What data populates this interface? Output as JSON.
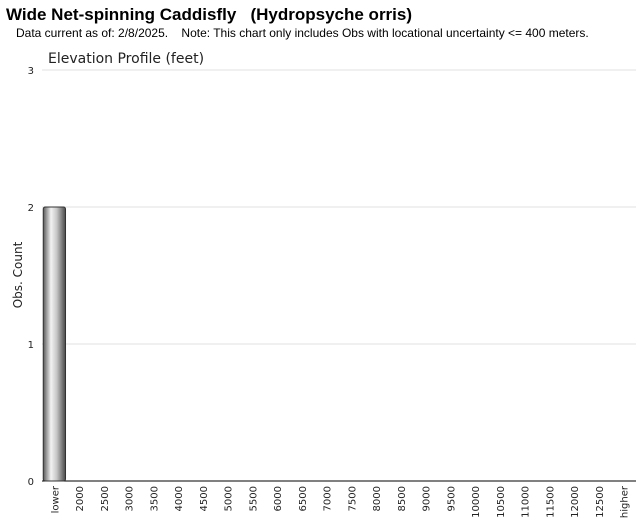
{
  "header": {
    "title": "Wide Net-spinning Caddisfly   (Hydropsyche orris)",
    "subtitle": "Data current as of: 2/8/2025.    Note: This chart only includes Obs with locational uncertainty <= 400 meters."
  },
  "chart_data": {
    "type": "bar",
    "title": "Elevation Profile (feet)",
    "ylabel": "Obs. Count",
    "xlabel": "",
    "ylim": [
      0,
      3
    ],
    "yticks": [
      "0",
      "1",
      "2",
      "3"
    ],
    "categories": [
      "lower",
      "2000",
      "2500",
      "3000",
      "3500",
      "4000",
      "4500",
      "5000",
      "5500",
      "6000",
      "6500",
      "7000",
      "7500",
      "8000",
      "8500",
      "9000",
      "9500",
      "10000",
      "10500",
      "11000",
      "11500",
      "12000",
      "12500",
      "higher"
    ],
    "values": [
      2,
      0,
      0,
      0,
      0,
      0,
      0,
      0,
      0,
      0,
      0,
      0,
      0,
      0,
      0,
      0,
      0,
      0,
      0,
      0,
      0,
      0,
      0,
      0
    ],
    "grid": true,
    "legend": "none",
    "bar_color": "#9a9a9a"
  }
}
